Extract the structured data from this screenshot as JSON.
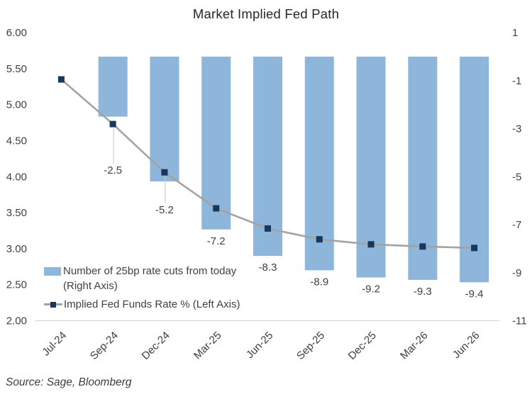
{
  "title": "Market Implied Fed Path",
  "source": "Source: Sage, Bloomberg",
  "legend": {
    "bars": {
      "label": "Number of 25bp rate cuts from today",
      "label2": "(Right Axis)"
    },
    "line": {
      "label": "Implied Fed Funds Rate % (Left Axis)"
    }
  },
  "colors": {
    "bar": "#8DB6DA",
    "line": "#A3A3A3",
    "marker": "#17375E",
    "axis_line": "#D9D9D9",
    "tick_text": "#404040",
    "leader": "#C4C4C4"
  },
  "chart_data": {
    "type": "bar",
    "title": "Market Implied Fed Path",
    "categories": [
      "Jul-24",
      "Sep-24",
      "Dec-24",
      "Mar-25",
      "Jun-25",
      "Sep-25",
      "Dec-25",
      "Mar-26",
      "Jun-26"
    ],
    "series": [
      {
        "name": "Number of 25bp rate cuts from today (Right Axis)",
        "type": "bar",
        "axis": "right",
        "values": [
          null,
          -2.5,
          -5.2,
          -7.2,
          -8.3,
          -8.9,
          -9.2,
          -9.3,
          -9.4
        ],
        "data_labels": [
          null,
          "-2.5",
          "-5.2",
          "-7.2",
          "-8.3",
          "-8.9",
          "-9.2",
          "-9.3",
          "-9.4"
        ]
      },
      {
        "name": "Implied Fed Funds Rate % (Left Axis)",
        "type": "line",
        "axis": "left",
        "values": [
          5.35,
          4.73,
          4.06,
          3.56,
          3.28,
          3.13,
          3.06,
          3.03,
          3.01
        ]
      }
    ],
    "axes": {
      "left": {
        "min": 2.0,
        "max": 6.0,
        "tick_values": [
          6,
          5.5,
          5,
          4.5,
          4,
          3.5,
          3,
          2.5,
          2
        ],
        "ticks": [
          "6.00",
          "5.50",
          "5.00",
          "4.50",
          "4.00",
          "3.50",
          "3.00",
          "2.50",
          "2.00"
        ]
      },
      "right": {
        "min": -11,
        "max": 1,
        "tick_values": [
          1,
          -1,
          -3,
          -5,
          -7,
          -9,
          -11
        ],
        "ticks": [
          "1",
          "-1",
          "-3",
          "-5",
          "-7",
          "-9",
          "-11"
        ]
      }
    },
    "grid": false,
    "legend_position": "inside-bottom-left"
  }
}
